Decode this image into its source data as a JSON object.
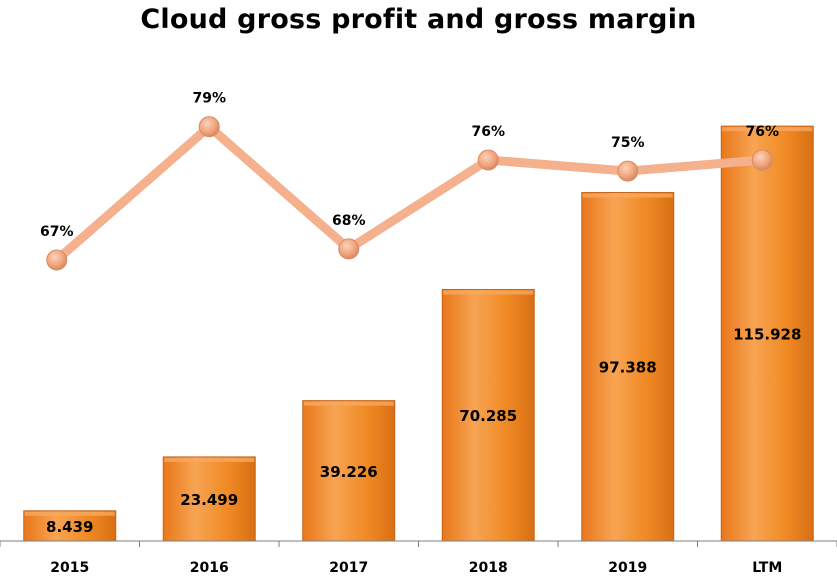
{
  "chart_data": {
    "type": "bar",
    "title": "Cloud gross profit and gross margin",
    "categories": [
      "2015",
      "2016",
      "2017",
      "2018",
      "2019",
      "LTM"
    ],
    "series": [
      {
        "type": "bar",
        "values": [
          8.439,
          23.499,
          39.226,
          70.285,
          97.388,
          115.928
        ],
        "labels": [
          "8.439",
          "23.499",
          "39.226",
          "70.285",
          "97.388",
          "115.928"
        ]
      },
      {
        "type": "line",
        "values": [
          67,
          79,
          68,
          76,
          75,
          76
        ],
        "labels": [
          "67%",
          "79%",
          "68%",
          "76%",
          "75%",
          "76%"
        ],
        "unit": "%"
      }
    ],
    "bar_ylim": [
      0,
      140
    ],
    "line_ylim": [
      40,
      85
    ],
    "grid": false,
    "legend": "none",
    "colors": {
      "bar_fill": "#F08A24",
      "bar_highlight": "#F6A960",
      "bar_edge": "#C8661A",
      "line": "#F5B18E",
      "marker": "#F2A880",
      "marker_edge": "#D98A62",
      "axis": "#7F7F7F"
    }
  }
}
